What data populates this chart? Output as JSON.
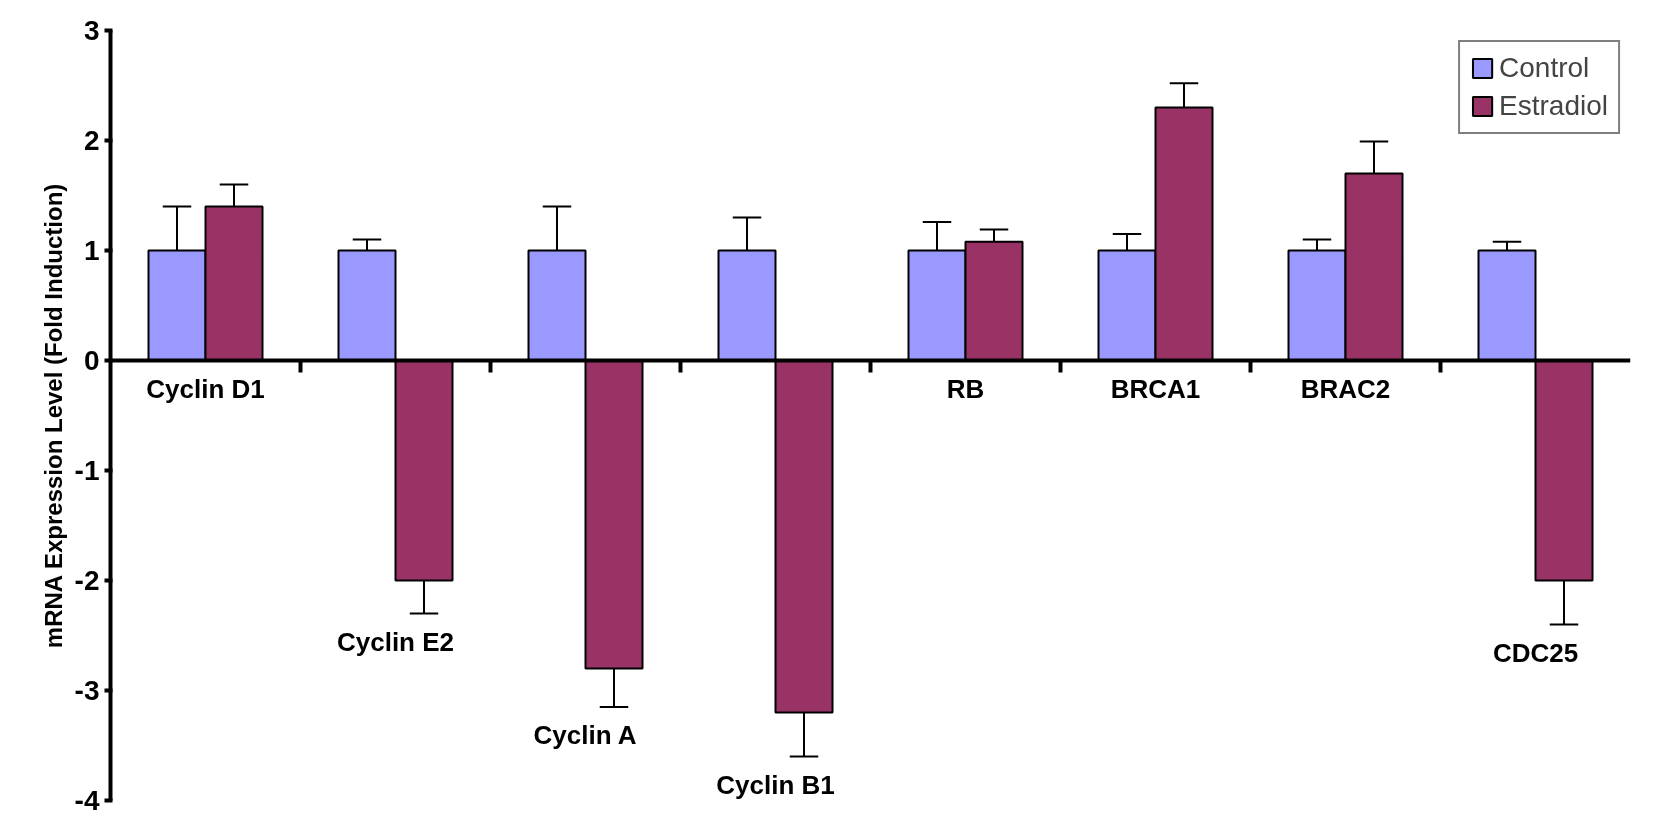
{
  "chart_data": {
    "type": "bar",
    "ylabel": "mRNA Expression Level (Fold Induction)",
    "categories": [
      "Cyclin D1",
      "Cyclin E2",
      "Cyclin A",
      "Cyclin B1",
      "RB",
      "BRCA1",
      "BRAC2",
      "CDC25"
    ],
    "series": [
      {
        "name": "Control",
        "color": "#9999ff",
        "values": [
          1,
          1,
          1,
          1,
          1,
          1,
          1,
          1
        ],
        "errors": [
          [
            1,
            1.4
          ],
          [
            1,
            1.1
          ],
          [
            1,
            1.4
          ],
          [
            1,
            1.3
          ],
          [
            1,
            1.26
          ],
          [
            1,
            1.15
          ],
          [
            1,
            1.1
          ],
          [
            1,
            1.08
          ]
        ]
      },
      {
        "name": "Estradiol",
        "color": "#993366",
        "values": [
          1.4,
          -2,
          -2.8,
          -3.2,
          1.08,
          2.3,
          1.7,
          -2
        ],
        "errors": [
          [
            1.4,
            1.6
          ],
          [
            -2.3,
            -2
          ],
          [
            -3.15,
            -2.8
          ],
          [
            -3.6,
            -3.2
          ],
          [
            1.08,
            1.19
          ],
          [
            2.3,
            2.52
          ],
          [
            1.7,
            1.99
          ],
          [
            -2.4,
            -2
          ]
        ]
      }
    ],
    "ylim": [
      -4,
      3
    ],
    "yticks": [
      -4,
      -3,
      -2,
      -1,
      0,
      1,
      2,
      3
    ],
    "grid": false,
    "legend": "top right"
  }
}
